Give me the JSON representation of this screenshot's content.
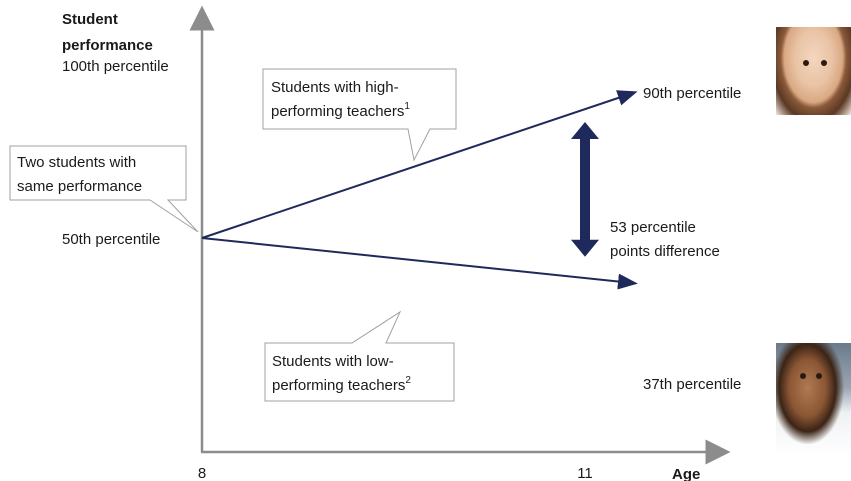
{
  "chart_data": {
    "type": "line",
    "title": "",
    "ylabel": "Student performance",
    "xlabel": "Age",
    "x_ticks": [
      "8",
      "11"
    ],
    "y_top_label": "100th percentile",
    "x": [
      8,
      11
    ],
    "ylim": [
      0,
      100
    ],
    "series": [
      {
        "name": "Students with high-performing teachers",
        "footnote": "1",
        "values": [
          50,
          90
        ],
        "end_label": "90th percentile"
      },
      {
        "name": "Students with low-performing teachers",
        "footnote": "2",
        "values": [
          50,
          37
        ],
        "end_label": "37th percentile"
      }
    ],
    "start_label": "50th percentile",
    "callouts": {
      "start": [
        "Two students with",
        "same performance"
      ],
      "high": [
        "Students with high-",
        "performing teachers"
      ],
      "high_sup": "1",
      "low": [
        "Students with low-",
        "performing teachers"
      ],
      "low_sup": "2"
    },
    "difference": {
      "value": 53,
      "lines": [
        "53 percentile",
        "points difference"
      ]
    },
    "grid": false,
    "legend": "none",
    "colors": {
      "lines": "#1f2a5c",
      "arrow": "#1f2a5c",
      "axis": "#8c8c8c",
      "callout_border": "#a0a0a0"
    }
  },
  "photos": {
    "top": "girl-photo",
    "bottom": "boy-photo"
  }
}
